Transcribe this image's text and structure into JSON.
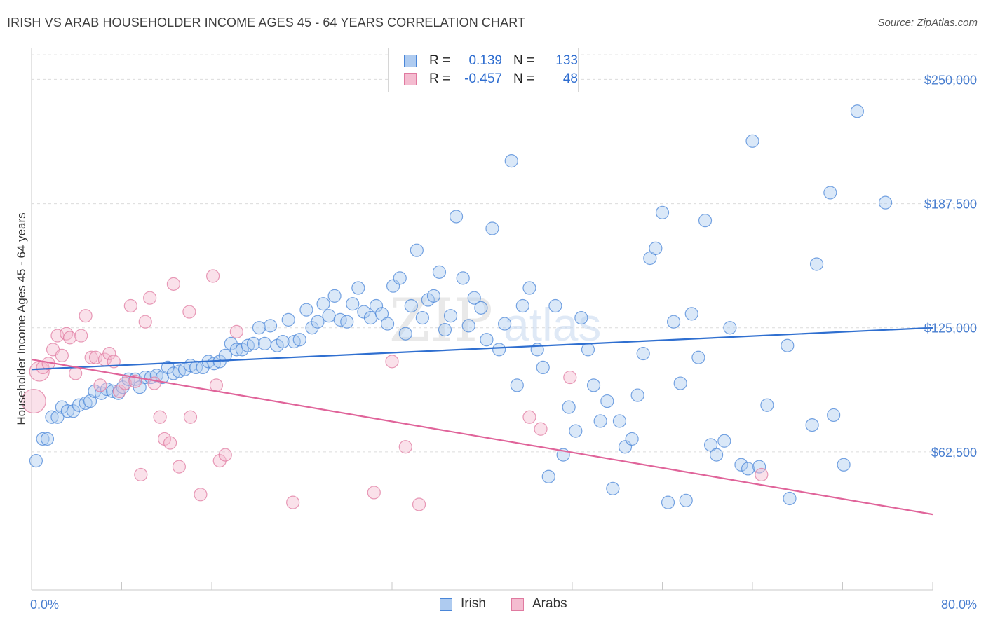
{
  "header": {
    "title": "IRISH VS ARAB HOUSEHOLDER INCOME AGES 45 - 64 YEARS CORRELATION CHART",
    "source": "Source: ZipAtlas.com"
  },
  "legend": {
    "irish": {
      "r_label": "R =",
      "r_value": "0.139",
      "n_label": "N =",
      "n_value": "133"
    },
    "arabs": {
      "r_label": "R =",
      "r_value": "-0.457",
      "n_label": "N =",
      "n_value": "48"
    }
  },
  "bottom_legend": {
    "irish": "Irish",
    "arabs": "Arabs"
  },
  "watermark": {
    "zip": "ZIP",
    "atlas": "atlas"
  },
  "chart_data": {
    "type": "scatter",
    "ylabel": "Householder Income Ages 45 - 64 years",
    "xlim": [
      0,
      80
    ],
    "ylim": [
      0,
      262500
    ],
    "x_tick_labels": [
      "0.0%",
      "80.0%"
    ],
    "y_ticks": [
      62500,
      125000,
      187500,
      250000
    ],
    "y_tick_labels": [
      "$62,500",
      "$125,000",
      "$187,500",
      "$250,000"
    ],
    "grid": "horizontal dashed",
    "legend_position": "top-center",
    "colors": {
      "irish": "#4a86d8",
      "irish_fill": "#aecbf0",
      "irish_line": "#2f6fd0",
      "arabs": "#e07aa0",
      "arabs_fill": "#f4bcd0",
      "arabs_line": "#e0649a"
    },
    "series": [
      {
        "name": "Irish",
        "trend": [
          [
            0,
            104000
          ],
          [
            80,
            125000
          ]
        ],
        "points": [
          [
            0.4,
            58000
          ],
          [
            1.0,
            69000
          ],
          [
            1.4,
            69000
          ],
          [
            1.8,
            80000
          ],
          [
            2.3,
            80000
          ],
          [
            2.7,
            85000
          ],
          [
            3.2,
            83000
          ],
          [
            3.7,
            83000
          ],
          [
            4.2,
            86000
          ],
          [
            4.8,
            87000
          ],
          [
            5.2,
            88000
          ],
          [
            5.6,
            93000
          ],
          [
            6.2,
            92000
          ],
          [
            6.7,
            94000
          ],
          [
            7.2,
            93000
          ],
          [
            7.7,
            92000
          ],
          [
            8.1,
            95000
          ],
          [
            8.6,
            99000
          ],
          [
            9.2,
            99000
          ],
          [
            9.6,
            95000
          ],
          [
            10.1,
            100000
          ],
          [
            10.6,
            100000
          ],
          [
            11.1,
            101000
          ],
          [
            11.6,
            100000
          ],
          [
            12.1,
            105000
          ],
          [
            12.6,
            102000
          ],
          [
            13.1,
            103000
          ],
          [
            13.6,
            104000
          ],
          [
            14.1,
            106000
          ],
          [
            14.6,
            105000
          ],
          [
            15.2,
            105000
          ],
          [
            15.7,
            108000
          ],
          [
            16.2,
            107000
          ],
          [
            16.7,
            108000
          ],
          [
            17.2,
            111000
          ],
          [
            17.7,
            117000
          ],
          [
            18.2,
            114000
          ],
          [
            18.7,
            114000
          ],
          [
            19.2,
            116000
          ],
          [
            19.7,
            117000
          ],
          [
            20.2,
            125000
          ],
          [
            20.7,
            117000
          ],
          [
            21.2,
            126000
          ],
          [
            21.8,
            116000
          ],
          [
            22.3,
            118000
          ],
          [
            22.8,
            129000
          ],
          [
            23.3,
            118000
          ],
          [
            23.8,
            119000
          ],
          [
            24.4,
            134000
          ],
          [
            24.9,
            125000
          ],
          [
            25.4,
            128000
          ],
          [
            25.9,
            137000
          ],
          [
            26.4,
            131000
          ],
          [
            26.9,
            141000
          ],
          [
            27.4,
            129000
          ],
          [
            28.0,
            128000
          ],
          [
            28.5,
            137000
          ],
          [
            29.0,
            145000
          ],
          [
            29.5,
            133000
          ],
          [
            30.1,
            130000
          ],
          [
            30.6,
            136000
          ],
          [
            31.1,
            132000
          ],
          [
            31.6,
            127000
          ],
          [
            32.1,
            146000
          ],
          [
            32.7,
            150000
          ],
          [
            33.2,
            122000
          ],
          [
            33.7,
            136000
          ],
          [
            34.2,
            164000
          ],
          [
            34.7,
            130000
          ],
          [
            35.2,
            139000
          ],
          [
            35.7,
            141000
          ],
          [
            36.2,
            153000
          ],
          [
            36.7,
            124000
          ],
          [
            37.2,
            131000
          ],
          [
            37.7,
            181000
          ],
          [
            38.3,
            150000
          ],
          [
            38.8,
            126000
          ],
          [
            39.3,
            140000
          ],
          [
            39.9,
            135000
          ],
          [
            40.4,
            119000
          ],
          [
            40.9,
            175000
          ],
          [
            41.5,
            114000
          ],
          [
            42.0,
            127000
          ],
          [
            42.6,
            209000
          ],
          [
            43.1,
            96000
          ],
          [
            43.6,
            136000
          ],
          [
            44.2,
            145000
          ],
          [
            44.9,
            114000
          ],
          [
            45.4,
            105000
          ],
          [
            45.9,
            50000
          ],
          [
            46.5,
            136000
          ],
          [
            47.2,
            61000
          ],
          [
            47.7,
            85000
          ],
          [
            48.3,
            73000
          ],
          [
            48.8,
            130000
          ],
          [
            49.4,
            114000
          ],
          [
            49.9,
            96000
          ],
          [
            50.5,
            78000
          ],
          [
            51.1,
            88000
          ],
          [
            51.6,
            44000
          ],
          [
            52.2,
            78000
          ],
          [
            52.7,
            65000
          ],
          [
            53.3,
            69000
          ],
          [
            53.8,
            91000
          ],
          [
            54.3,
            112000
          ],
          [
            54.9,
            160000
          ],
          [
            55.4,
            165000
          ],
          [
            56.0,
            183000
          ],
          [
            56.5,
            37000
          ],
          [
            57.0,
            128000
          ],
          [
            57.6,
            97000
          ],
          [
            58.1,
            38000
          ],
          [
            58.6,
            132000
          ],
          [
            59.2,
            110000
          ],
          [
            59.8,
            179000
          ],
          [
            60.3,
            66000
          ],
          [
            60.8,
            61000
          ],
          [
            61.5,
            68000
          ],
          [
            62.0,
            125000
          ],
          [
            63.0,
            56000
          ],
          [
            63.6,
            54000
          ],
          [
            64.0,
            219000
          ],
          [
            64.6,
            55000
          ],
          [
            65.3,
            86000
          ],
          [
            67.1,
            116000
          ],
          [
            67.3,
            39000
          ],
          [
            69.3,
            76000
          ],
          [
            69.7,
            157000
          ],
          [
            70.9,
            193000
          ],
          [
            71.2,
            81000
          ],
          [
            72.1,
            56000
          ],
          [
            73.3,
            234000
          ],
          [
            75.8,
            188000
          ]
        ]
      },
      {
        "name": "Arabs",
        "trend": [
          [
            0,
            109000
          ],
          [
            80,
            31000
          ]
        ],
        "points": [
          [
            0.2,
            88000
          ],
          [
            0.7,
            103000
          ],
          [
            1.0,
            105000
          ],
          [
            1.5,
            107000
          ],
          [
            1.9,
            114000
          ],
          [
            2.3,
            121000
          ],
          [
            2.7,
            111000
          ],
          [
            3.1,
            122000
          ],
          [
            3.4,
            120000
          ],
          [
            3.9,
            102000
          ],
          [
            4.4,
            121000
          ],
          [
            4.8,
            131000
          ],
          [
            5.3,
            110000
          ],
          [
            5.7,
            110000
          ],
          [
            6.1,
            96000
          ],
          [
            6.5,
            109000
          ],
          [
            6.9,
            112000
          ],
          [
            7.3,
            108000
          ],
          [
            7.8,
            93000
          ],
          [
            8.3,
            97000
          ],
          [
            8.8,
            136000
          ],
          [
            9.2,
            98000
          ],
          [
            9.7,
            51000
          ],
          [
            10.1,
            128000
          ],
          [
            10.5,
            140000
          ],
          [
            10.9,
            97000
          ],
          [
            11.4,
            80000
          ],
          [
            11.8,
            69000
          ],
          [
            12.3,
            67000
          ],
          [
            12.6,
            147000
          ],
          [
            13.1,
            55000
          ],
          [
            14.0,
            133000
          ],
          [
            14.1,
            80000
          ],
          [
            15.0,
            41000
          ],
          [
            16.1,
            151000
          ],
          [
            16.4,
            96000
          ],
          [
            16.7,
            58000
          ],
          [
            17.2,
            61000
          ],
          [
            18.2,
            123000
          ],
          [
            23.2,
            37000
          ],
          [
            30.4,
            42000
          ],
          [
            32.0,
            108000
          ],
          [
            33.2,
            65000
          ],
          [
            34.4,
            36000
          ],
          [
            44.2,
            80000
          ],
          [
            45.2,
            74000
          ],
          [
            47.8,
            100000
          ],
          [
            64.8,
            51000
          ]
        ]
      }
    ]
  }
}
